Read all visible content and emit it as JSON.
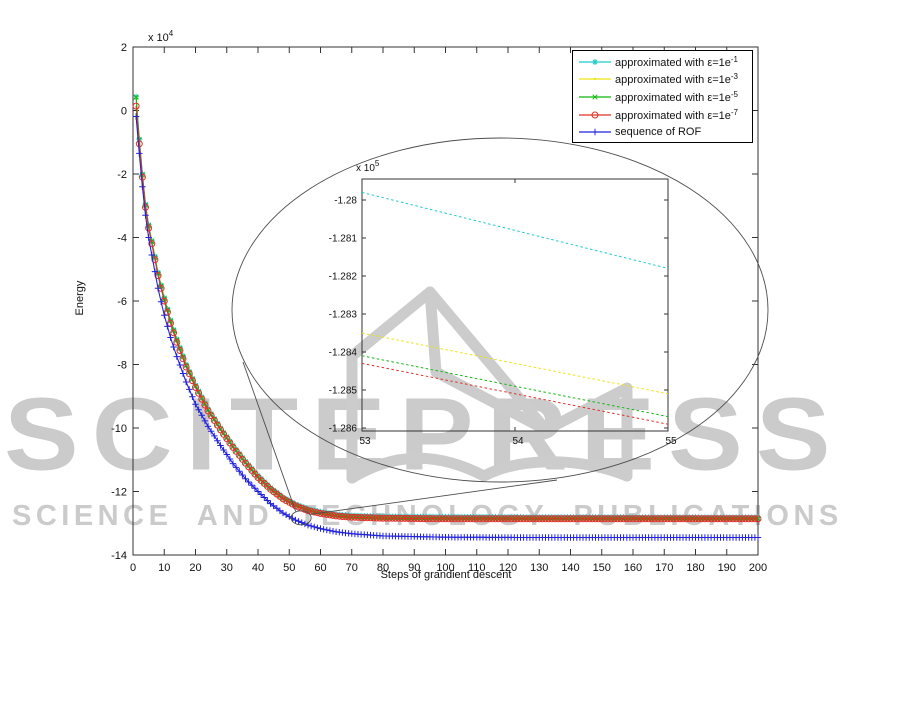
{
  "watermark": {
    "line1": "SCITEPRESS",
    "line2": "SCIENCE AND TECHNOLOGY PUBLICATIONS",
    "color": "#cbcbcb",
    "book_icon": "open-book-logo"
  },
  "chart_data": {
    "type": "line",
    "title": "",
    "xlabel": "Steps of grandient descent",
    "ylabel": "Energy",
    "y_scale": {
      "base": "x 10",
      "exp": "4"
    },
    "xlim": [
      0,
      200
    ],
    "ylim": [
      -14,
      2
    ],
    "grid": false,
    "legend_position": "top-right",
    "x_ticks": [
      0,
      10,
      20,
      30,
      40,
      50,
      60,
      70,
      80,
      90,
      100,
      110,
      120,
      130,
      140,
      150,
      160,
      170,
      180,
      190,
      200
    ],
    "y_ticks": [
      2,
      0,
      -2,
      -4,
      -6,
      -8,
      -10,
      -12,
      -14
    ],
    "x_range_of_data": [
      1,
      200
    ],
    "series": [
      {
        "name": "approximated with ε=1e⁻¹",
        "label_base": "approximated with ε=1e",
        "label_exp": "-1",
        "color": "#1fc9c9",
        "marker": "asterisk",
        "anchors_t": [
          1,
          2,
          3,
          4,
          5,
          6,
          8,
          10,
          12,
          14,
          17,
          20,
          24,
          28,
          32,
          36,
          40,
          44,
          48,
          52,
          56,
          60,
          65,
          70,
          80,
          100,
          130,
          200
        ],
        "anchors_y": [
          0.43,
          -0.9,
          -2.0,
          -2.95,
          -3.6,
          -4.1,
          -5.1,
          -5.9,
          -6.6,
          -7.2,
          -8.0,
          -8.65,
          -9.4,
          -10.0,
          -10.55,
          -11.05,
          -11.5,
          -11.88,
          -12.18,
          -12.4,
          -12.55,
          -12.64,
          -12.72,
          -12.76,
          -12.79,
          -12.8,
          -12.81,
          -12.82
        ]
      },
      {
        "name": "approximated with ε=1e⁻³",
        "label_base": "approximated with ε=1e",
        "label_exp": "-3",
        "color": "#ede30f",
        "marker": "dot",
        "anchors_t": [
          1,
          2,
          3,
          4,
          5,
          6,
          8,
          10,
          12,
          14,
          17,
          20,
          24,
          28,
          32,
          36,
          40,
          44,
          48,
          52,
          56,
          60,
          65,
          70,
          80,
          100,
          130,
          200
        ],
        "anchors_y": [
          0.42,
          -0.92,
          -2.02,
          -2.97,
          -3.62,
          -4.12,
          -5.12,
          -5.92,
          -6.62,
          -7.22,
          -8.02,
          -8.67,
          -9.42,
          -10.02,
          -10.58,
          -11.08,
          -11.53,
          -11.91,
          -12.21,
          -12.43,
          -12.58,
          -12.67,
          -12.75,
          -12.79,
          -12.82,
          -12.84,
          -12.84,
          -12.85
        ]
      },
      {
        "name": "approximated with ε=1e⁻⁵",
        "label_base": "approximated with ε=1e",
        "label_exp": "-5",
        "color": "#0fb80f",
        "marker": "x",
        "anchors_t": [
          1,
          2,
          3,
          4,
          5,
          6,
          8,
          10,
          12,
          14,
          17,
          20,
          24,
          28,
          32,
          36,
          40,
          44,
          48,
          52,
          56,
          60,
          65,
          70,
          80,
          100,
          130,
          200
        ],
        "anchors_y": [
          0.42,
          -0.93,
          -2.03,
          -2.98,
          -3.63,
          -4.13,
          -5.13,
          -5.93,
          -6.63,
          -7.23,
          -8.03,
          -8.68,
          -9.43,
          -10.03,
          -10.59,
          -11.09,
          -11.54,
          -11.92,
          -12.22,
          -12.44,
          -12.59,
          -12.68,
          -12.76,
          -12.8,
          -12.83,
          -12.85,
          -12.85,
          -12.86
        ]
      },
      {
        "name": "approximated with ε=1e⁻⁷",
        "label_base": "approximated with ε=1e",
        "label_exp": "-7",
        "color": "#e03028",
        "marker": "circle",
        "anchors_t": [
          1,
          2,
          3,
          4,
          5,
          6,
          8,
          10,
          12,
          14,
          17,
          20,
          24,
          28,
          32,
          36,
          40,
          44,
          48,
          52,
          56,
          60,
          65,
          70,
          80,
          100,
          130,
          200
        ],
        "anchors_y": [
          0.14,
          -1.05,
          -2.1,
          -3.05,
          -3.7,
          -4.2,
          -5.2,
          -6.0,
          -6.7,
          -7.3,
          -8.08,
          -8.72,
          -9.46,
          -10.06,
          -10.61,
          -11.11,
          -11.56,
          -11.93,
          -12.23,
          -12.45,
          -12.6,
          -12.69,
          -12.77,
          -12.81,
          -12.84,
          -12.86,
          -12.86,
          -12.86
        ]
      },
      {
        "name": "sequence of ROF",
        "label_base": "sequence of ROF",
        "label_exp": "",
        "color": "#2222dd",
        "marker": "plus",
        "anchors_t": [
          1,
          2,
          3,
          4,
          5,
          6,
          8,
          10,
          12,
          14,
          17,
          20,
          24,
          28,
          32,
          36,
          40,
          44,
          48,
          52,
          56,
          60,
          65,
          70,
          80,
          100,
          130,
          200
        ],
        "anchors_y": [
          -0.19,
          -1.35,
          -2.4,
          -3.3,
          -4.0,
          -4.55,
          -5.6,
          -6.45,
          -7.15,
          -7.75,
          -8.55,
          -9.25,
          -9.95,
          -10.55,
          -11.12,
          -11.6,
          -12.0,
          -12.38,
          -12.68,
          -12.9,
          -13.06,
          -13.17,
          -13.27,
          -13.33,
          -13.4,
          -13.44,
          -13.45,
          -13.45
        ]
      }
    ],
    "zoom_annotation": {
      "source_t": 53.8,
      "source_value": -12.83,
      "description": "small circle on main curve magnified into large ellipse inset"
    },
    "inset": {
      "y_scale": {
        "base": "x 10",
        "exp": "5"
      },
      "x_ticks": [
        53,
        54,
        55
      ],
      "y_ticks": [
        -1.28,
        -1.281,
        -1.282,
        -1.283,
        -1.284,
        -1.285,
        -1.286
      ],
      "series": [
        {
          "name": "approximated with ε=1e⁻¹",
          "color": "#1fc9c9",
          "x": [
            53,
            54,
            55
          ],
          "values": [
            -1.2798,
            -1.2808,
            -1.2818
          ]
        },
        {
          "name": "approximated with ε=1e⁻³",
          "color": "#ede30f",
          "x": [
            53,
            54,
            55
          ],
          "values": [
            -1.2835,
            -1.2843,
            -1.2851
          ]
        },
        {
          "name": "approximated with ε=1e⁻⁵",
          "color": "#0fb80f",
          "x": [
            53,
            54,
            55
          ],
          "values": [
            -1.2841,
            -1.2849,
            -1.2857
          ]
        },
        {
          "name": "approximated with ε=1e⁻⁷",
          "color": "#e03028",
          "x": [
            53,
            54,
            55
          ],
          "values": [
            -1.2843,
            -1.2851,
            -1.2859
          ]
        }
      ]
    }
  }
}
